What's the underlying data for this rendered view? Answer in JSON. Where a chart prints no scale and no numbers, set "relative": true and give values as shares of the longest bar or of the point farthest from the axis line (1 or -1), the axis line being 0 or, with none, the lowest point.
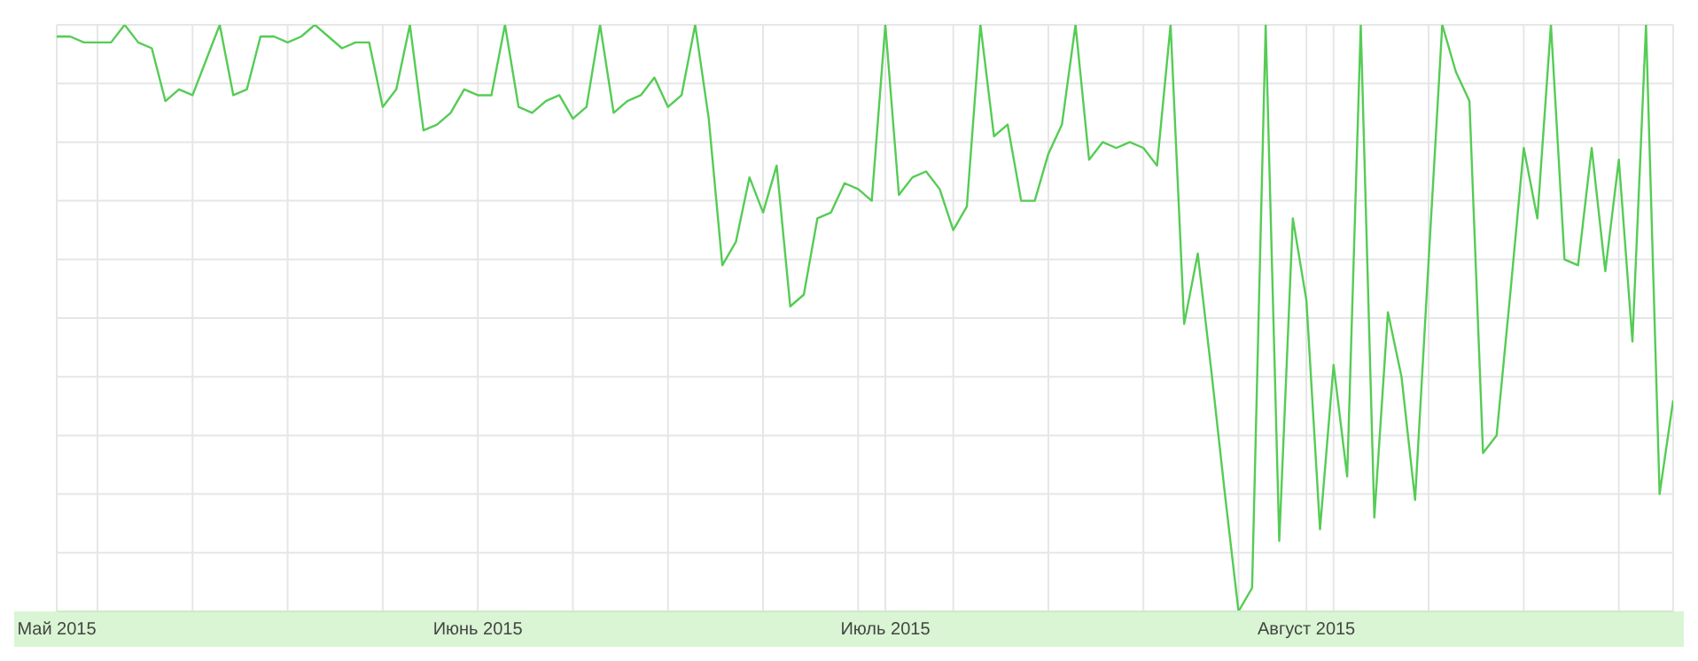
{
  "chart_data": {
    "type": "line",
    "relative": true,
    "grid": true,
    "xlim": [
      "2015-05-01",
      "2015-08-28"
    ],
    "xticks": [
      {
        "value": "2015-05-01",
        "label": "Май 2015"
      },
      {
        "value": "2015-05-04",
        "label": null
      },
      {
        "value": "2015-05-11",
        "label": null
      },
      {
        "value": "2015-05-18",
        "label": null
      },
      {
        "value": "2015-05-25",
        "label": null
      },
      {
        "value": "2015-06-01",
        "label": "Июнь 2015"
      },
      {
        "value": "2015-06-08",
        "label": null
      },
      {
        "value": "2015-06-15",
        "label": null
      },
      {
        "value": "2015-06-22",
        "label": null
      },
      {
        "value": "2015-06-29",
        "label": null
      },
      {
        "value": "2015-07-01",
        "label": "Июль 2015"
      },
      {
        "value": "2015-07-06",
        "label": null
      },
      {
        "value": "2015-07-13",
        "label": null
      },
      {
        "value": "2015-07-20",
        "label": null
      },
      {
        "value": "2015-07-27",
        "label": null
      },
      {
        "value": "2015-08-01",
        "label": "Август 2015"
      },
      {
        "value": "2015-08-03",
        "label": null
      },
      {
        "value": "2015-08-10",
        "label": null
      },
      {
        "value": "2015-08-17",
        "label": null
      },
      {
        "value": "2015-08-24",
        "label": null
      }
    ],
    "series": [
      {
        "color": "#55cc55",
        "x": [
          "2015-05-01",
          "2015-05-02",
          "2015-05-03",
          "2015-05-04",
          "2015-05-05",
          "2015-05-06",
          "2015-05-07",
          "2015-05-08",
          "2015-05-09",
          "2015-05-10",
          "2015-05-11",
          "2015-05-12",
          "2015-05-13",
          "2015-05-14",
          "2015-05-15",
          "2015-05-16",
          "2015-05-17",
          "2015-05-18",
          "2015-05-19",
          "2015-05-20",
          "2015-05-21",
          "2015-05-22",
          "2015-05-23",
          "2015-05-24",
          "2015-05-25",
          "2015-05-26",
          "2015-05-27",
          "2015-05-28",
          "2015-05-29",
          "2015-05-30",
          "2015-05-31",
          "2015-06-01",
          "2015-06-02",
          "2015-06-03",
          "2015-06-04",
          "2015-06-05",
          "2015-06-06",
          "2015-06-07",
          "2015-06-08",
          "2015-06-09",
          "2015-06-10",
          "2015-06-11",
          "2015-06-12",
          "2015-06-13",
          "2015-06-14",
          "2015-06-15",
          "2015-06-16",
          "2015-06-17",
          "2015-06-18",
          "2015-06-19",
          "2015-06-20",
          "2015-06-21",
          "2015-06-22",
          "2015-06-23",
          "2015-06-24",
          "2015-06-25",
          "2015-06-26",
          "2015-06-27",
          "2015-06-28",
          "2015-06-29",
          "2015-06-30",
          "2015-07-01",
          "2015-07-02",
          "2015-07-03",
          "2015-07-04",
          "2015-07-05",
          "2015-07-06",
          "2015-07-07",
          "2015-07-08",
          "2015-07-09",
          "2015-07-10",
          "2015-07-11",
          "2015-07-12",
          "2015-07-13",
          "2015-07-14",
          "2015-07-15",
          "2015-07-16",
          "2015-07-17",
          "2015-07-18",
          "2015-07-19",
          "2015-07-20",
          "2015-07-21",
          "2015-07-22",
          "2015-07-23",
          "2015-07-24",
          "2015-07-25",
          "2015-07-26",
          "2015-07-27",
          "2015-07-28",
          "2015-07-29",
          "2015-07-30",
          "2015-07-31",
          "2015-08-01",
          "2015-08-02",
          "2015-08-03",
          "2015-08-04",
          "2015-08-05",
          "2015-08-06",
          "2015-08-07",
          "2015-08-08",
          "2015-08-09",
          "2015-08-10",
          "2015-08-11",
          "2015-08-12",
          "2015-08-13",
          "2015-08-14",
          "2015-08-15",
          "2015-08-16",
          "2015-08-17",
          "2015-08-18",
          "2015-08-19",
          "2015-08-20",
          "2015-08-21",
          "2015-08-22",
          "2015-08-23",
          "2015-08-24",
          "2015-08-25",
          "2015-08-26",
          "2015-08-27",
          "2015-08-28"
        ],
        "values": [
          0.98,
          0.98,
          0.97,
          0.97,
          0.97,
          1,
          0.97,
          0.96,
          0.87,
          0.89,
          0.88,
          0.94,
          1,
          0.88,
          0.89,
          0.98,
          0.98,
          0.97,
          0.98,
          1,
          0.98,
          0.96,
          0.97,
          0.97,
          0.86,
          0.89,
          1,
          0.82,
          0.83,
          0.85,
          0.89,
          0.88,
          0.88,
          1,
          0.86,
          0.85,
          0.87,
          0.88,
          0.84,
          0.86,
          1,
          0.85,
          0.87,
          0.88,
          0.91,
          0.86,
          0.88,
          1,
          0.84,
          0.59,
          0.63,
          0.74,
          0.68,
          0.76,
          0.52,
          0.54,
          0.67,
          0.68,
          0.73,
          0.72,
          0.7,
          1,
          0.71,
          0.74,
          0.75,
          0.72,
          0.65,
          0.69,
          1,
          0.81,
          0.83,
          0.7,
          0.7,
          0.78,
          0.83,
          1,
          0.77,
          0.8,
          0.79,
          0.8,
          0.79,
          0.76,
          1,
          0.49,
          0.61,
          0.41,
          0.2,
          0,
          0.04,
          1,
          0.12,
          0.67,
          0.53,
          0.14,
          0.42,
          0.23,
          1,
          0.16,
          0.51,
          0.4,
          0.19,
          0.6,
          1,
          0.92,
          0.87,
          0.27,
          0.3,
          0.54,
          0.79,
          0.67,
          1,
          0.6,
          0.59,
          0.79,
          0.58,
          0.77,
          0.46,
          1,
          0.2,
          0.36
        ]
      }
    ]
  }
}
